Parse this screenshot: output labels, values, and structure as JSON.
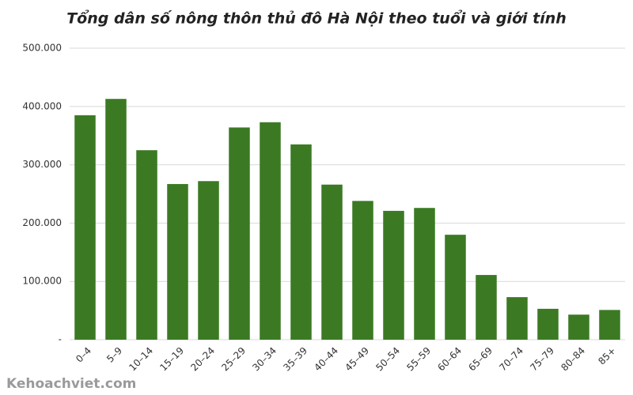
{
  "chart_data": {
    "type": "bar",
    "title": "Tổng dân số nông thôn thủ đô Hà Nội theo tuổi và giới tính",
    "categories": [
      "0–4",
      "5–9",
      "10–14",
      "15–19",
      "20–24",
      "25–29",
      "30–34",
      "35–39",
      "40–44",
      "45–49",
      "50–54",
      "55–59",
      "60–64",
      "65–69",
      "70–74",
      "75–79",
      "80–84",
      "85+"
    ],
    "values": [
      385000,
      413000,
      325000,
      267000,
      272000,
      364000,
      373000,
      335000,
      266000,
      238000,
      221000,
      226000,
      180000,
      111000,
      73000,
      53000,
      43000,
      51000
    ],
    "color": "#3b7a23",
    "ylim": [
      0,
      500000
    ],
    "yticks": [
      {
        "value": 0,
        "label": "-"
      },
      {
        "value": 100000,
        "label": "100.000"
      },
      {
        "value": 200000,
        "label": "200.000"
      },
      {
        "value": 300000,
        "label": "300.000"
      },
      {
        "value": 400000,
        "label": "400.000"
      },
      {
        "value": 500000,
        "label": "500.000"
      }
    ],
    "grid": true
  },
  "watermark": "Kehoachviet.com"
}
